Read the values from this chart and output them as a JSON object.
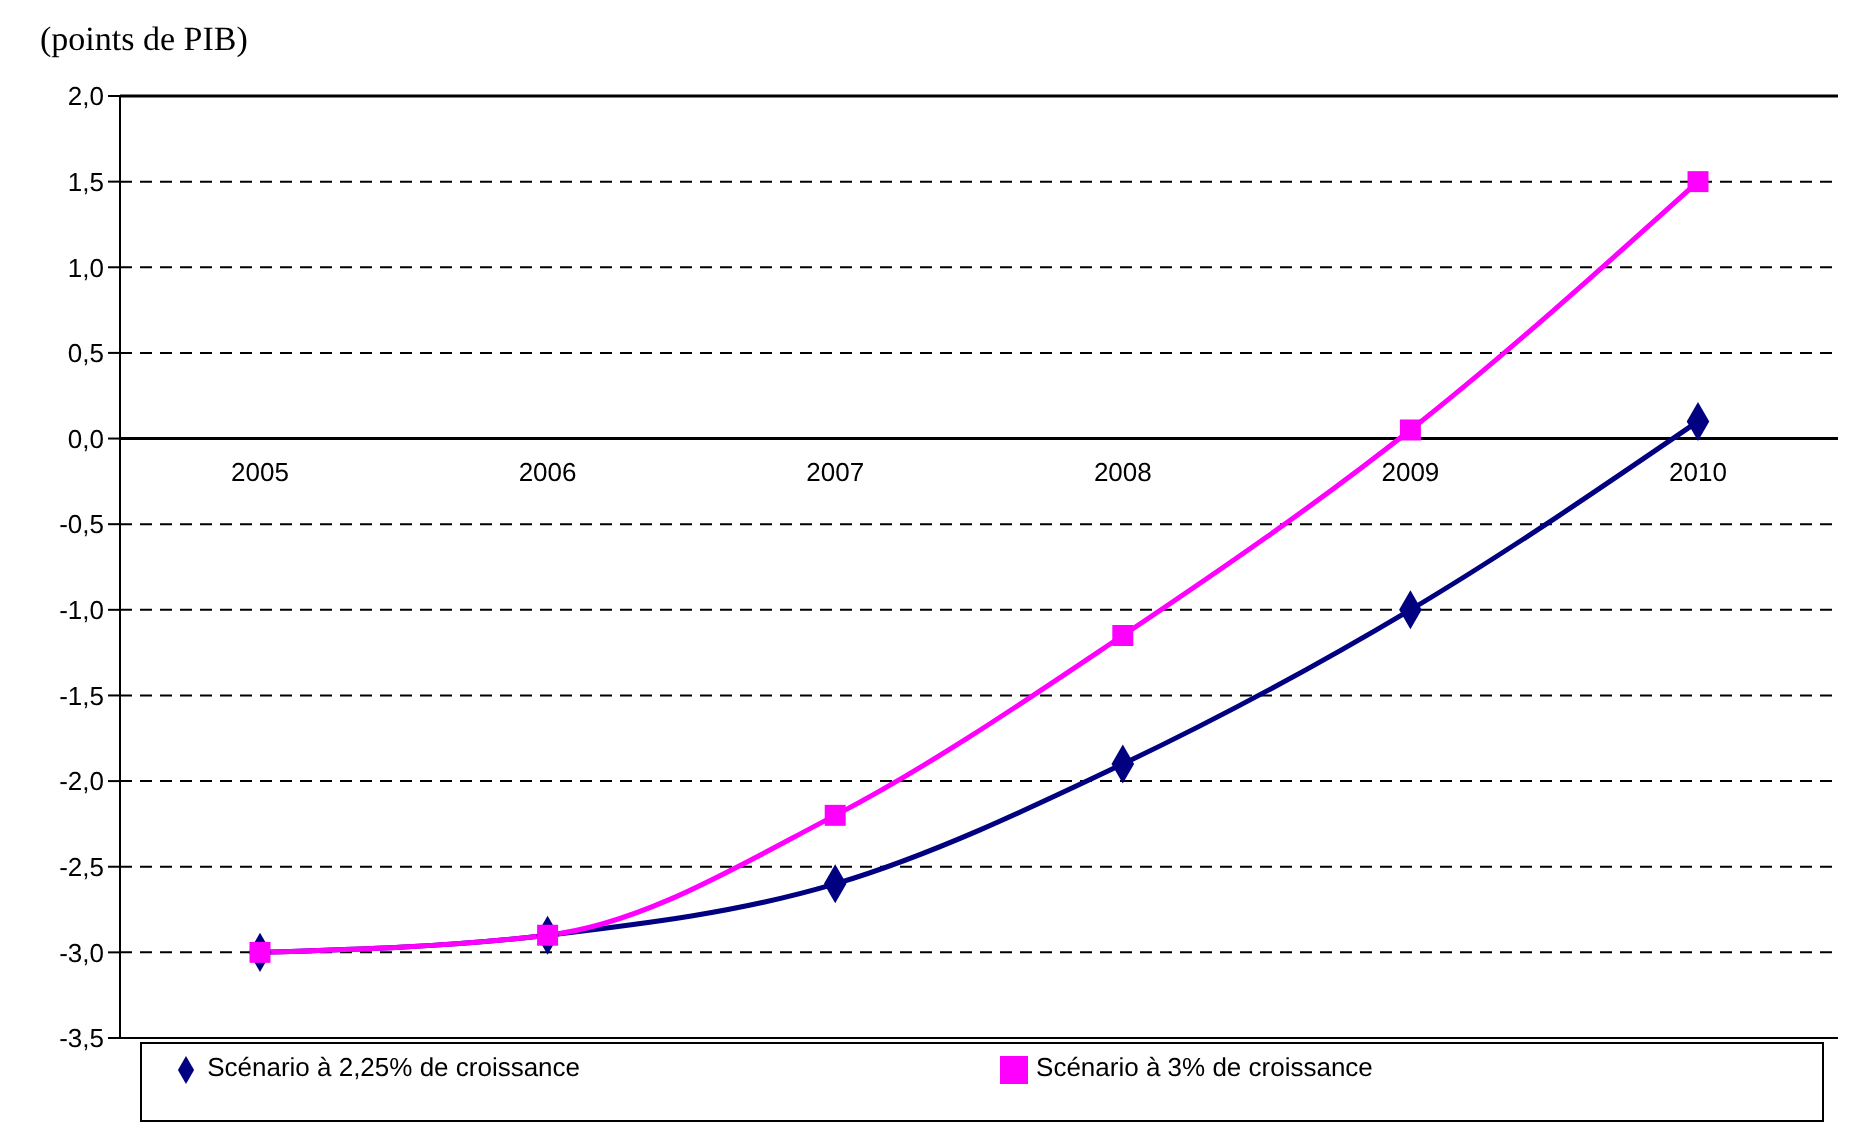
{
  "chart_data": {
    "type": "line",
    "ylabel": "(points de PIB)",
    "categories": [
      "2005",
      "2006",
      "2007",
      "2008",
      "2009",
      "2010"
    ],
    "series": [
      {
        "name": "Scénario à 2,25% de croissance",
        "color": "#000080",
        "values": [
          -3.0,
          -2.9,
          -2.6,
          -1.9,
          -1.0,
          0.1
        ],
        "marker": "diamond"
      },
      {
        "name": "Scénario à 3% de croissance",
        "color": "#ff00ff",
        "values": [
          -3.0,
          -2.9,
          -2.2,
          -1.15,
          0.05,
          1.5
        ],
        "marker": "square"
      }
    ],
    "ylim": [
      -3.5,
      2.0
    ],
    "yticks": [
      {
        "value": -3.5,
        "label": "-3,5"
      },
      {
        "value": -3.0,
        "label": "-3,0"
      },
      {
        "value": -2.5,
        "label": "-2,5"
      },
      {
        "value": -2.0,
        "label": "-2,0"
      },
      {
        "value": -1.5,
        "label": "-1,5"
      },
      {
        "value": -1.0,
        "label": "-1,0"
      },
      {
        "value": -0.5,
        "label": "-0,5"
      },
      {
        "value": 0.0,
        "label": "0,0"
      },
      {
        "value": 0.5,
        "label": "0,5"
      },
      {
        "value": 1.0,
        "label": "1,0"
      },
      {
        "value": 1.5,
        "label": "1,5"
      },
      {
        "value": 2.0,
        "label": "2,0"
      }
    ],
    "grid": "y",
    "legend": "bottom"
  }
}
